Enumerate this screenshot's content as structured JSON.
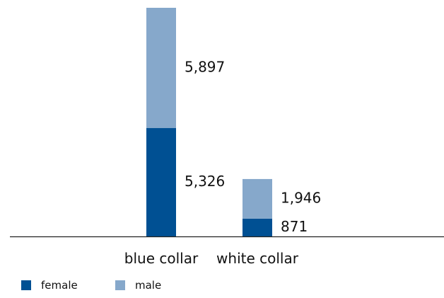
{
  "chart_data": {
    "type": "bar",
    "stacked": true,
    "categories": [
      "blue collar",
      "white collar"
    ],
    "series": [
      {
        "name": "female",
        "values": [
          5326,
          871
        ],
        "color": "#005093",
        "labels": [
          "5,326",
          "871"
        ]
      },
      {
        "name": "male",
        "values": [
          5897,
          1946
        ],
        "color": "#86A8CB",
        "labels": [
          "5,897",
          "1,946"
        ]
      }
    ],
    "title": "",
    "xlabel": "",
    "ylabel": "",
    "ylim": [
      0,
      11223
    ],
    "grid": false,
    "legend_position": "bottom-left"
  }
}
